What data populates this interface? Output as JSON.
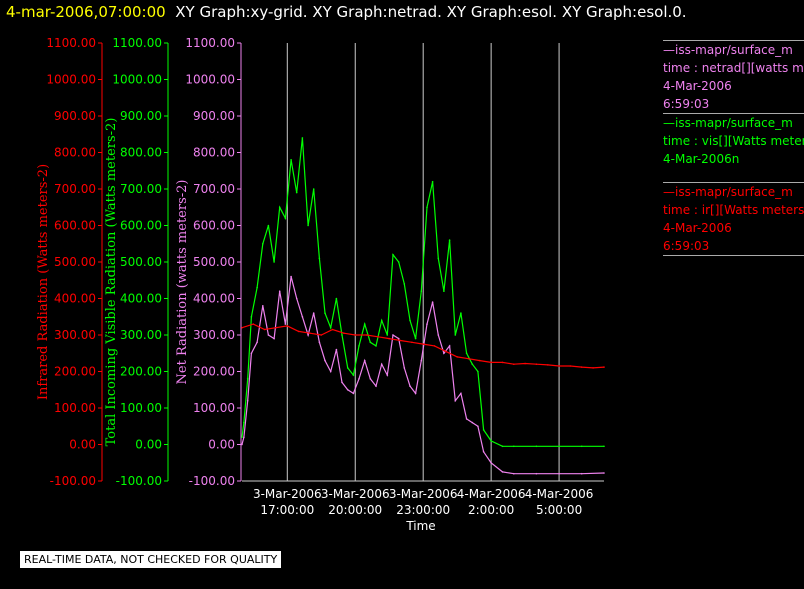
{
  "header": {
    "date": "4-mar-2006,07:00:00",
    "graphs": "XY Graph:xy-grid.  XY Graph:netrad.  XY Graph:esol.  XY Graph:esol.0."
  },
  "legend": [
    {
      "color": "#ee82ee",
      "lines": [
        "—iss-mapr/surface_m",
        "time : netrad[][watts m",
        "4-Mar-2006",
        "6:59:03"
      ]
    },
    {
      "color": "#00ff00",
      "lines": [
        "—iss-mapr/surface_m",
        "time : vis[][Watts meter",
        "4-Mar-2006n"
      ]
    },
    {
      "color": "#ff0000",
      "lines": [
        "—iss-mapr/surface_m",
        "time : ir[][Watts meters",
        "4-Mar-2006",
        "6:59:03"
      ]
    }
  ],
  "quality_note": "REAL-TIME DATA, NOT CHECKED FOR QUALITY",
  "chart_data": {
    "type": "line",
    "xlabel": "Time",
    "x_range": [
      "3-Mar-2006 15:00:00",
      "4-Mar-2006 06:59:00"
    ],
    "x_ticks": [
      {
        "line1": "3-Mar-2006",
        "line2": "17:00:00",
        "x": "3-Mar-2006 17:00"
      },
      {
        "line1": "3-Mar-2006",
        "line2": "20:00:00",
        "x": "3-Mar-2006 20:00"
      },
      {
        "line1": "3-Mar-2006",
        "line2": "23:00:00",
        "x": "3-Mar-2006 23:00"
      },
      {
        "line1": "4-Mar-2006",
        "line2": "2:00:00",
        "x": "4-Mar-2006 02:00"
      },
      {
        "line1": "4-Mar-2006",
        "line2": "5:00:00",
        "x": "4-Mar-2006 05:00"
      }
    ],
    "grid": "vertical lines at x ticks",
    "axes": [
      {
        "id": "ir",
        "label": "Infrared Radiation (Watts meters-2)",
        "color": "#ff0000",
        "ylim": [
          -100,
          1100
        ],
        "ticks": [
          "1100.00",
          "1000.00",
          "900.00",
          "800.00",
          "700.00",
          "600.00",
          "500.00",
          "400.00",
          "300.00",
          "200.00",
          "100.00",
          "0.00",
          "-100.00"
        ]
      },
      {
        "id": "vis",
        "label": "Total Incoming Visible Radiation (Watts meters-2)",
        "color": "#00ff00",
        "ylim": [
          -100,
          1100
        ],
        "ticks": [
          "1100.00",
          "1000.00",
          "900.00",
          "800.00",
          "700.00",
          "600.00",
          "500.00",
          "400.00",
          "300.00",
          "200.00",
          "100.00",
          "0.00",
          "-100.00"
        ]
      },
      {
        "id": "net",
        "label": "Net Radiation (watts meters-2)",
        "color": "#ee82ee",
        "ylim": [
          -100,
          1100
        ],
        "ticks": [
          "1100.00",
          "1000.00",
          "900.00",
          "800.00",
          "700.00",
          "600.00",
          "500.00",
          "400.00",
          "300.00",
          "200.00",
          "100.00",
          "0.00",
          "-100.00"
        ]
      }
    ],
    "series": [
      {
        "axis": "vis",
        "color": "#00ff00",
        "x": [
          "3-Mar-2006 15:00",
          "3-Mar-2006 15:05",
          "3-Mar-2006 15:15",
          "3-Mar-2006 15:25",
          "3-Mar-2006 15:40",
          "3-Mar-2006 15:55",
          "3-Mar-2006 16:10",
          "3-Mar-2006 16:25",
          "3-Mar-2006 16:40",
          "3-Mar-2006 16:55",
          "3-Mar-2006 17:10",
          "3-Mar-2006 17:25",
          "3-Mar-2006 17:40",
          "3-Mar-2006 17:55",
          "3-Mar-2006 18:10",
          "3-Mar-2006 18:25",
          "3-Mar-2006 18:40",
          "3-Mar-2006 18:55",
          "3-Mar-2006 19:10",
          "3-Mar-2006 19:25",
          "3-Mar-2006 19:40",
          "3-Mar-2006 19:55",
          "3-Mar-2006 20:10",
          "3-Mar-2006 20:25",
          "3-Mar-2006 20:40",
          "3-Mar-2006 20:55",
          "3-Mar-2006 21:10",
          "3-Mar-2006 21:25",
          "3-Mar-2006 21:40",
          "3-Mar-2006 21:55",
          "3-Mar-2006 22:10",
          "3-Mar-2006 22:25",
          "3-Mar-2006 22:40",
          "3-Mar-2006 22:55",
          "3-Mar-2006 23:10",
          "3-Mar-2006 23:25",
          "3-Mar-2006 23:40",
          "3-Mar-2006 23:55",
          "4-Mar-2006 00:10",
          "4-Mar-2006 00:25",
          "4-Mar-2006 00:40",
          "4-Mar-2006 00:55",
          "4-Mar-2006 01:10",
          "4-Mar-2006 01:25",
          "4-Mar-2006 01:40",
          "4-Mar-2006 02:00",
          "4-Mar-2006 02:30",
          "4-Mar-2006 03:00",
          "4-Mar-2006 04:00",
          "4-Mar-2006 05:00",
          "4-Mar-2006 06:00",
          "4-Mar-2006 06:59"
        ],
        "y": [
          20,
          60,
          180,
          350,
          430,
          550,
          600,
          500,
          650,
          620,
          780,
          690,
          840,
          600,
          700,
          510,
          360,
          320,
          400,
          300,
          210,
          190,
          270,
          330,
          280,
          270,
          340,
          300,
          520,
          500,
          440,
          340,
          290,
          420,
          650,
          720,
          510,
          420,
          560,
          300,
          360,
          250,
          220,
          200,
          40,
          10,
          -5,
          -5,
          -5,
          -5,
          -5,
          -5
        ]
      },
      {
        "axis": "net",
        "color": "#ee82ee",
        "x": [
          "3-Mar-2006 15:00",
          "3-Mar-2006 15:05",
          "3-Mar-2006 15:15",
          "3-Mar-2006 15:25",
          "3-Mar-2006 15:40",
          "3-Mar-2006 15:55",
          "3-Mar-2006 16:10",
          "3-Mar-2006 16:25",
          "3-Mar-2006 16:40",
          "3-Mar-2006 16:55",
          "3-Mar-2006 17:10",
          "3-Mar-2006 17:25",
          "3-Mar-2006 17:40",
          "3-Mar-2006 17:55",
          "3-Mar-2006 18:10",
          "3-Mar-2006 18:25",
          "3-Mar-2006 18:40",
          "3-Mar-2006 18:55",
          "3-Mar-2006 19:10",
          "3-Mar-2006 19:25",
          "3-Mar-2006 19:40",
          "3-Mar-2006 19:55",
          "3-Mar-2006 20:10",
          "3-Mar-2006 20:25",
          "3-Mar-2006 20:40",
          "3-Mar-2006 20:55",
          "3-Mar-2006 21:10",
          "3-Mar-2006 21:25",
          "3-Mar-2006 21:40",
          "3-Mar-2006 21:55",
          "3-Mar-2006 22:10",
          "3-Mar-2006 22:25",
          "3-Mar-2006 22:40",
          "3-Mar-2006 22:55",
          "3-Mar-2006 23:10",
          "3-Mar-2006 23:25",
          "3-Mar-2006 23:40",
          "3-Mar-2006 23:55",
          "4-Mar-2006 00:10",
          "4-Mar-2006 00:25",
          "4-Mar-2006 00:40",
          "4-Mar-2006 00:55",
          "4-Mar-2006 01:10",
          "4-Mar-2006 01:25",
          "4-Mar-2006 01:40",
          "4-Mar-2006 02:00",
          "4-Mar-2006 02:30",
          "4-Mar-2006 03:00",
          "4-Mar-2006 04:00",
          "4-Mar-2006 05:00",
          "4-Mar-2006 06:00",
          "4-Mar-2006 06:59"
        ],
        "y": [
          0,
          20,
          120,
          250,
          280,
          380,
          300,
          290,
          420,
          330,
          460,
          400,
          350,
          300,
          360,
          280,
          230,
          200,
          260,
          170,
          150,
          140,
          180,
          230,
          180,
          160,
          220,
          190,
          300,
          290,
          210,
          160,
          140,
          230,
          330,
          390,
          300,
          250,
          270,
          120,
          140,
          70,
          60,
          50,
          -20,
          -50,
          -75,
          -80,
          -80,
          -80,
          -80,
          -78
        ]
      },
      {
        "axis": "ir",
        "color": "#ff0000",
        "x": [
          "3-Mar-2006 15:00",
          "3-Mar-2006 15:30",
          "3-Mar-2006 16:00",
          "3-Mar-2006 16:30",
          "3-Mar-2006 17:00",
          "3-Mar-2006 17:30",
          "3-Mar-2006 18:00",
          "3-Mar-2006 18:30",
          "3-Mar-2006 19:00",
          "3-Mar-2006 19:30",
          "3-Mar-2006 20:00",
          "3-Mar-2006 20:30",
          "3-Mar-2006 21:00",
          "3-Mar-2006 21:30",
          "3-Mar-2006 22:00",
          "3-Mar-2006 22:30",
          "3-Mar-2006 23:00",
          "3-Mar-2006 23:30",
          "4-Mar-2006 00:00",
          "4-Mar-2006 00:30",
          "4-Mar-2006 01:00",
          "4-Mar-2006 01:30",
          "4-Mar-2006 02:00",
          "4-Mar-2006 02:30",
          "4-Mar-2006 03:00",
          "4-Mar-2006 03:30",
          "4-Mar-2006 04:00",
          "4-Mar-2006 04:30",
          "4-Mar-2006 05:00",
          "4-Mar-2006 05:30",
          "4-Mar-2006 06:00",
          "4-Mar-2006 06:30",
          "4-Mar-2006 06:59"
        ],
        "y": [
          320,
          330,
          315,
          320,
          325,
          310,
          305,
          300,
          315,
          305,
          300,
          300,
          295,
          290,
          285,
          280,
          275,
          270,
          255,
          240,
          235,
          230,
          225,
          225,
          220,
          222,
          220,
          218,
          215,
          215,
          212,
          210,
          212
        ]
      }
    ]
  }
}
